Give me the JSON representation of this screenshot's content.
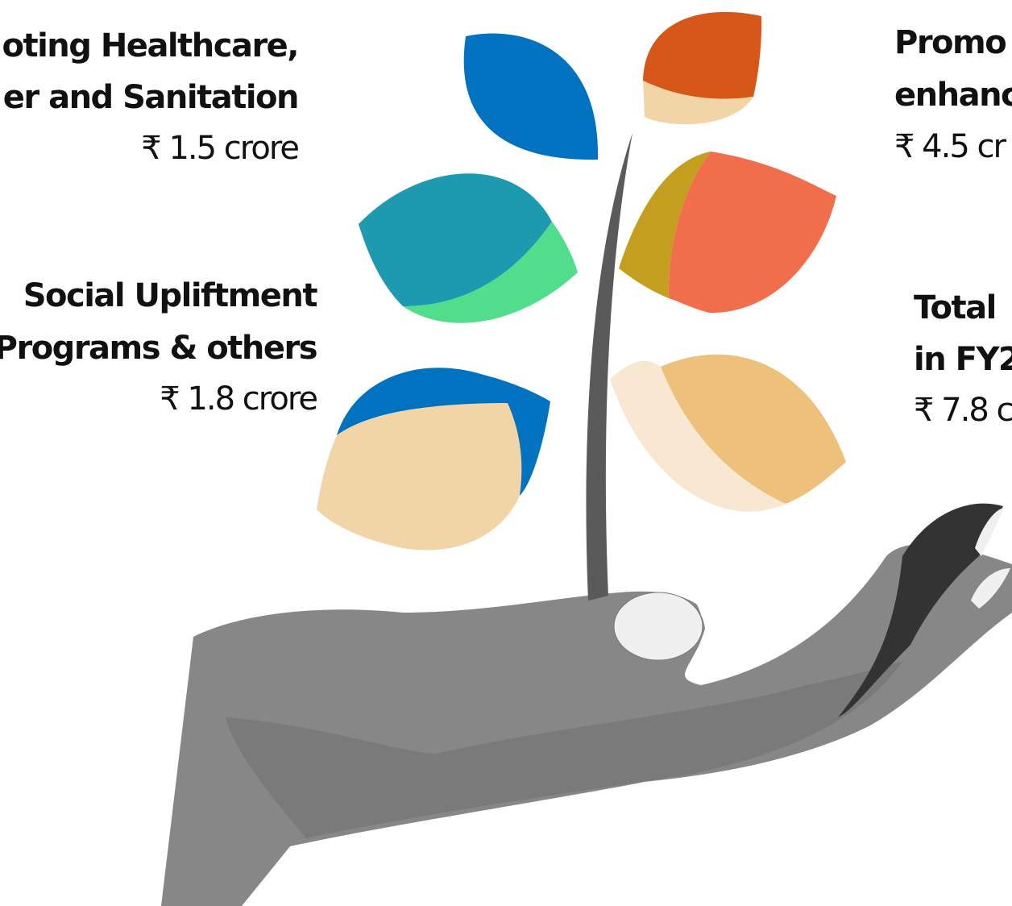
{
  "labels": [
    {
      "title_lines": [
        "oting Healthcare,",
        "er and Sanitation"
      ],
      "amount": "₹ 1.5 crore"
    },
    {
      "title_lines": [
        "Social Upliftment",
        "Programs & others"
      ],
      "amount": "₹ 1.8 crore"
    },
    {
      "title_lines": [
        "Promo",
        "enhanc"
      ],
      "amount": "₹ 4.5 cr"
    },
    {
      "title_lines": [
        "Total",
        "in FY2"
      ],
      "amount": "₹ 7.8 c"
    }
  ]
}
